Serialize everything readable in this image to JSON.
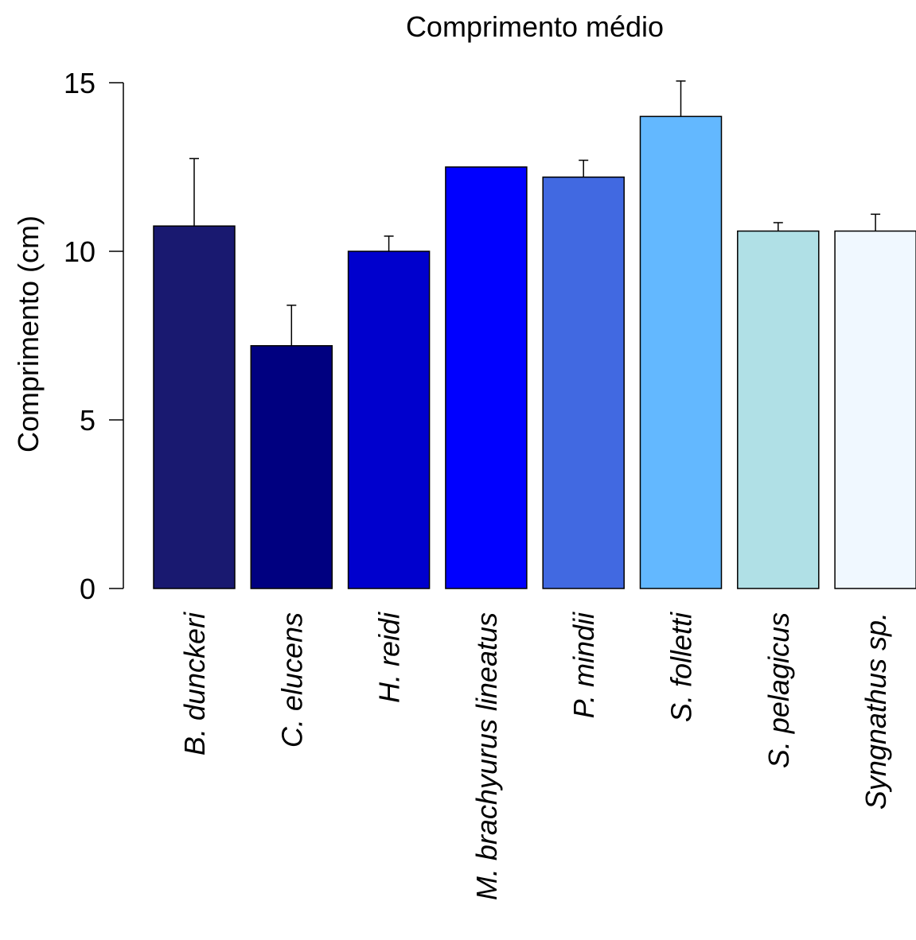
{
  "chart_data": {
    "type": "bar",
    "title": "Comprimento médio",
    "y_label": "Comprimento (cm)",
    "categories": [
      "B. dunckeri",
      "C. elucens",
      "H. reidi",
      "M. brachyurus lineatus",
      "P. mindii",
      "S. folletti",
      "S. pelagicus",
      "Syngnathus sp."
    ],
    "values": [
      10.75,
      7.2,
      10.0,
      12.5,
      12.2,
      14.0,
      10.6,
      10.6
    ],
    "errors": [
      2.0,
      1.2,
      0.45,
      null,
      0.5,
      1.05,
      0.25,
      0.5
    ],
    "colors": [
      "#191970",
      "#000080",
      "#0000cd",
      "#0000ff",
      "#4169e1",
      "#63b8ff",
      "#b0e0e6",
      "#f0f8ff"
    ],
    "ylim": [
      0,
      15
    ],
    "yticks": [
      0,
      5,
      10,
      15
    ]
  }
}
